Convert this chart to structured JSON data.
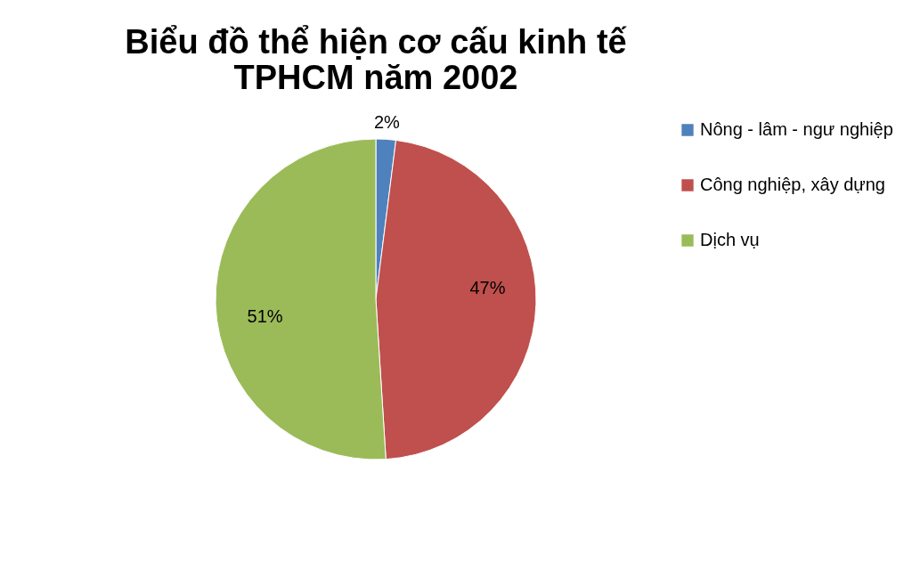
{
  "chart_data": {
    "type": "pie",
    "title": [
      "Biểu đồ thể hiện cơ cấu kinh tế",
      "TPHCM năm 2002"
    ],
    "categories": [
      "Nông - lâm - ngư nghiệp",
      "Công nghiệp, xây dựng",
      "Dịch vụ"
    ],
    "values": [
      2,
      47,
      51
    ],
    "colors": [
      "#4f81bd",
      "#c0504d",
      "#9bbb59"
    ],
    "value_labels": [
      "2%",
      "47%",
      "51%"
    ],
    "legend": "right"
  }
}
